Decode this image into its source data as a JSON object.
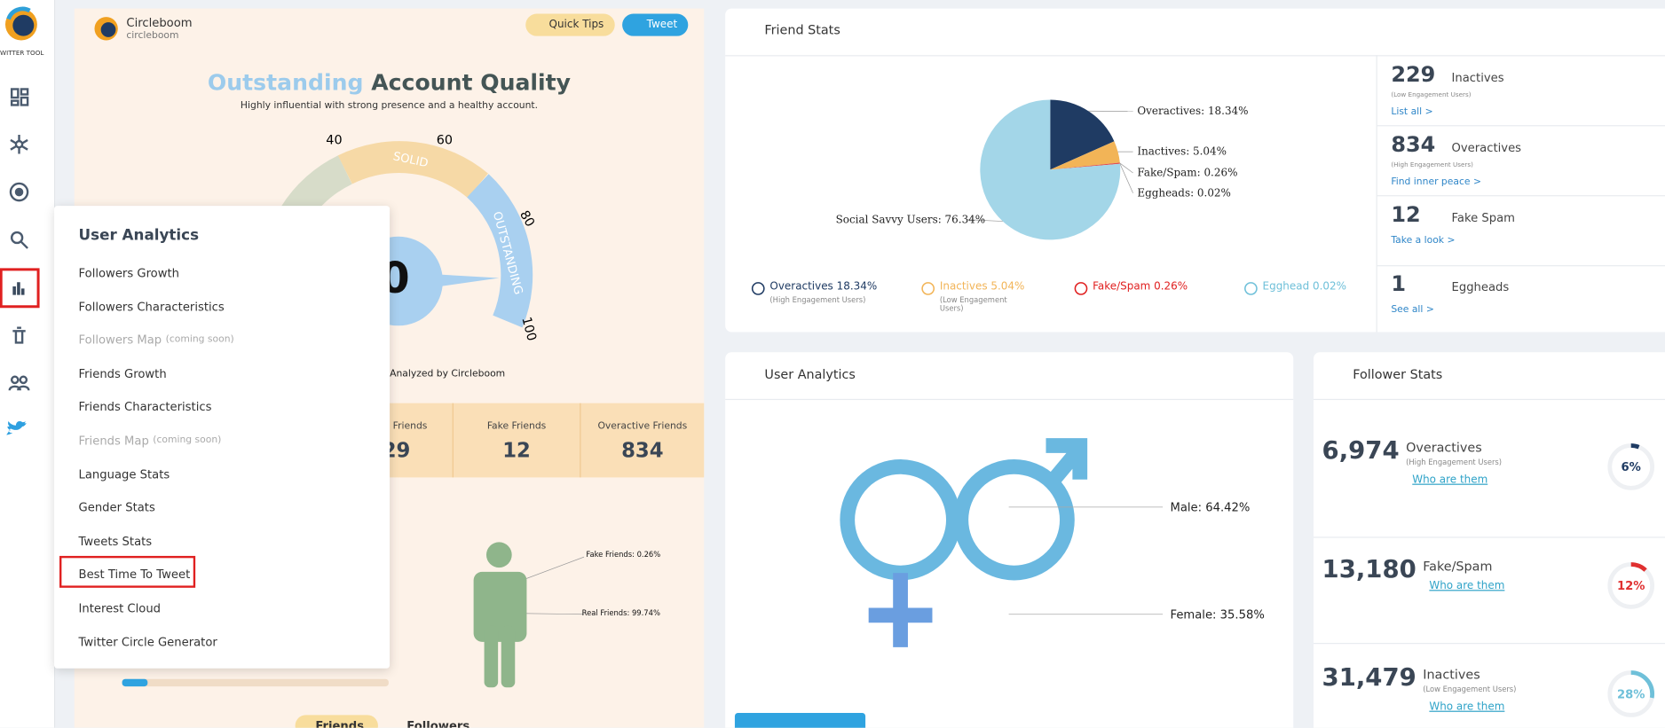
{
  "sidebar": {
    "logo_text": "WITTER TOOL"
  },
  "profile": {
    "name": "Circleboom",
    "handle": "circleboom"
  },
  "buttons": {
    "quick_tips": "Quick Tips",
    "tweet": "Tweet"
  },
  "quality": {
    "title_highlight": "Outstanding",
    "title_rest": "Account Quality",
    "subtitle": "Highly influential with strong presence and a healthy account.",
    "gauge_ticks": [
      "40",
      "60",
      "80",
      "100"
    ],
    "segment_solid": "SOLID",
    "segment_outstanding": "OUTSTANDING",
    "score": "0",
    "analyzed": "Analyzed by Circleboom"
  },
  "friend_counts": [
    {
      "label": "Friends",
      "value": "29"
    },
    {
      "label": "Fake Friends",
      "value": "12"
    },
    {
      "label": "Overactive Friends",
      "value": "834"
    }
  ],
  "human": {
    "fake": "Fake Friends: 0.26%",
    "real": "Real Friends: 99.74%"
  },
  "tabs": [
    "Friends",
    "Followers"
  ],
  "menu": {
    "title": "User Analytics",
    "items": [
      {
        "label": "Followers Growth"
      },
      {
        "label": "Followers Characteristics"
      },
      {
        "label": "Followers Map",
        "note": "(coming soon)"
      },
      {
        "label": "Friends Growth"
      },
      {
        "label": "Friends Characteristics"
      },
      {
        "label": "Friends Map",
        "note": "(coming soon)"
      },
      {
        "label": "Language Stats"
      },
      {
        "label": "Gender Stats"
      },
      {
        "label": "Tweets Stats"
      },
      {
        "label": "Best Time To Tweet"
      },
      {
        "label": "Interest Cloud"
      },
      {
        "label": "Twitter Circle Generator"
      }
    ]
  },
  "friend_stats": {
    "title": "Friend Stats",
    "pie": {
      "slices": [
        {
          "value": 18.34,
          "label": "Overactives: 18.34%",
          "color": "#1f3b63"
        },
        {
          "value": 5.04,
          "label": "Inactives: 5.04%",
          "color": "#f2b457"
        },
        {
          "value": 0.26,
          "label": "Fake/Spam: 0.26%",
          "color": "#e05050"
        },
        {
          "value": 0.02,
          "label": "Eggheads: 0.02%",
          "color": "#6fb3d6"
        },
        {
          "value": 76.34,
          "label": "Social Savvy Users: 76.34%",
          "color": "#a3d6e8"
        }
      ]
    },
    "legend": [
      {
        "text": "Overactives 18.34%",
        "sub": "(High Engagement Users)",
        "color": "#1f3b63"
      },
      {
        "text": "Inactives 5.04%",
        "sub": "(Low Engagement Users)",
        "color": "#f2b457"
      },
      {
        "text": "Fake/Spam 0.26%",
        "color": "#e02020"
      },
      {
        "text": "Egghead 0.02%",
        "color": "#6fc0d9"
      }
    ],
    "side": [
      {
        "value": "229",
        "label": "Inactives",
        "sub": "(Low Engagement Users)",
        "link": "List all >"
      },
      {
        "value": "834",
        "label": "Overactives",
        "sub": "(High Engagement Users)",
        "link": "Find inner peace >"
      },
      {
        "value": "12",
        "label": "Fake Spam",
        "link": "Take a look >"
      },
      {
        "value": "1",
        "label": "Eggheads",
        "link": "See all >"
      }
    ]
  },
  "user_analytics": {
    "title": "User Analytics",
    "male": "Male: 64.42%",
    "female": "Female: 35.58%"
  },
  "follower_stats": {
    "title": "Follower Stats",
    "items": [
      {
        "value": "6,974",
        "label": "Overactives",
        "sub": "(High Engagement Users)",
        "link": "Who are them",
        "pct": 6,
        "pct_label": "6%",
        "color": "#1f3b63"
      },
      {
        "value": "13,180",
        "label": "Fake/Spam",
        "link": "Who are them",
        "pct": 12,
        "pct_label": "12%",
        "color": "#e03030"
      },
      {
        "value": "31,479",
        "label": "Inactives",
        "sub": "(Low Engagement Users)",
        "link": "Who are them",
        "pct": 28,
        "pct_label": "28%",
        "color": "#6fc0d9"
      }
    ]
  }
}
